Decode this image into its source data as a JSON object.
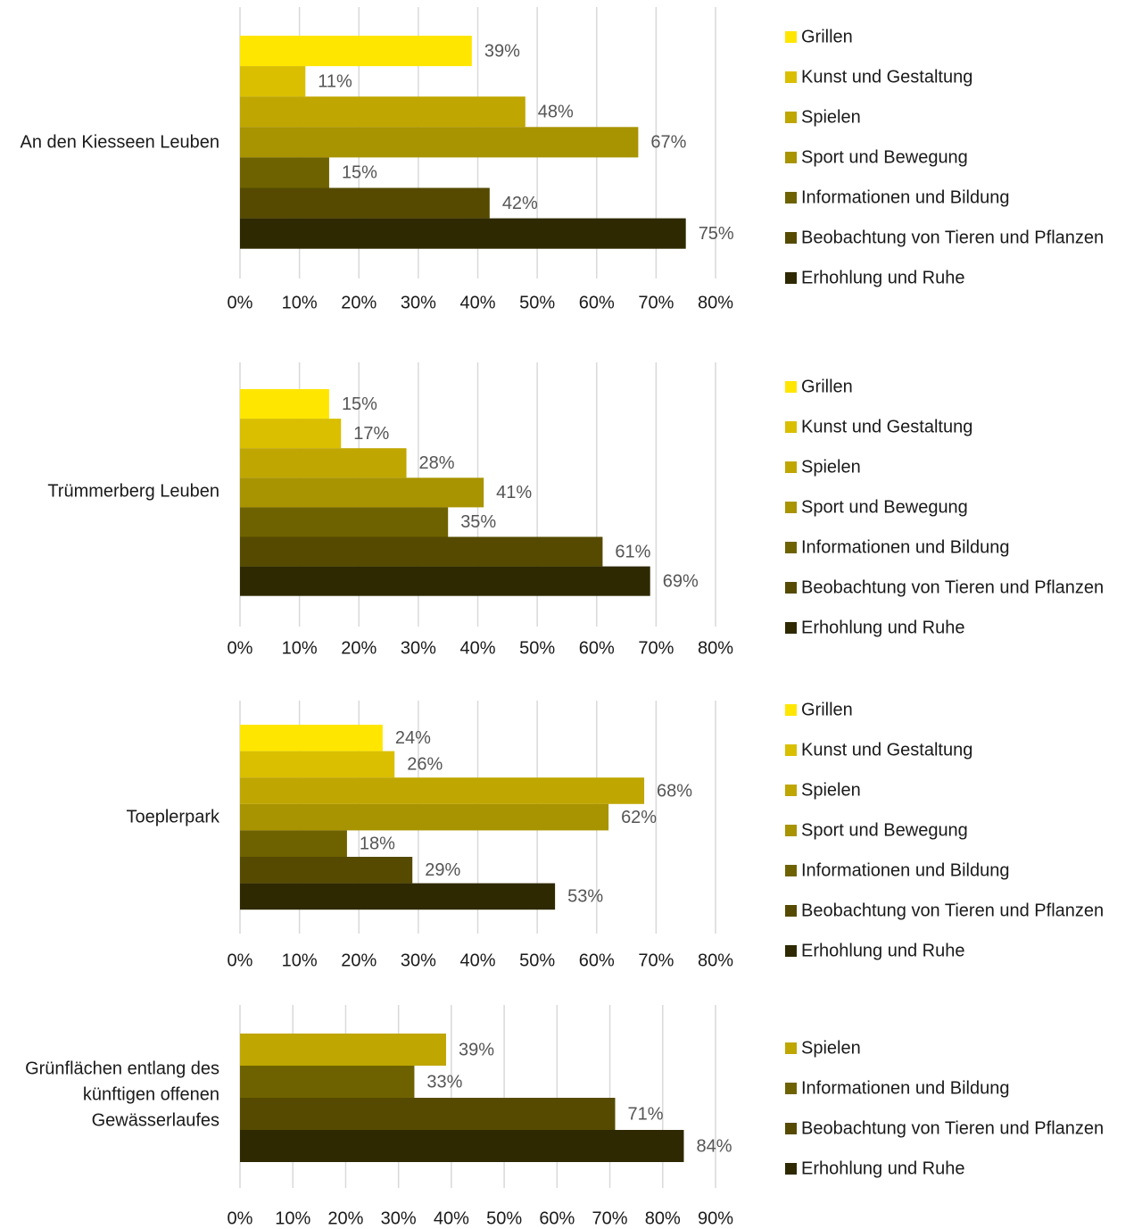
{
  "colors": {
    "Grillen": "#FFE600",
    "Kunst und Gestaltung": "#D9BF00",
    "Spielen": "#BFA600",
    "Sport und Bewegung": "#A89300",
    "Informationen und Bildung": "#6E6200",
    "Beobachtung von Tieren und Pflanzen": "#554A00",
    "Erhohlung und Ruhe": "#2E2900"
  },
  "chart_data": [
    {
      "type": "bar",
      "orientation": "horizontal",
      "category": "An den Kiesseen Leuben",
      "series": [
        {
          "name": "Grillen",
          "value": 39
        },
        {
          "name": "Kunst und Gestaltung",
          "value": 11
        },
        {
          "name": "Spielen",
          "value": 48
        },
        {
          "name": "Sport und Bewegung",
          "value": 67
        },
        {
          "name": "Informationen und Bildung",
          "value": 15
        },
        {
          "name": "Beobachtung von Tieren und Pflanzen",
          "value": 42
        },
        {
          "name": "Erhohlung und Ruhe",
          "value": 75
        }
      ],
      "value_labels": [
        "39%",
        "11%",
        "48%",
        "67%",
        "15%",
        "42%",
        "75%"
      ],
      "xlim": [
        0,
        80
      ],
      "ticks": [
        "0%",
        "10%",
        "20%",
        "30%",
        "40%",
        "50%",
        "60%",
        "70%",
        "80%"
      ],
      "grid": true,
      "legend": "right"
    },
    {
      "type": "bar",
      "orientation": "horizontal",
      "category": "Trümmerberg Leuben",
      "series": [
        {
          "name": "Grillen",
          "value": 15
        },
        {
          "name": "Kunst und Gestaltung",
          "value": 17
        },
        {
          "name": "Spielen",
          "value": 28
        },
        {
          "name": "Sport und Bewegung",
          "value": 41
        },
        {
          "name": "Informationen und Bildung",
          "value": 35
        },
        {
          "name": "Beobachtung von Tieren und Pflanzen",
          "value": 61
        },
        {
          "name": "Erhohlung und Ruhe",
          "value": 69
        }
      ],
      "value_labels": [
        "15%",
        "17%",
        "28%",
        "41%",
        "35%",
        "61%",
        "69%"
      ],
      "xlim": [
        0,
        80
      ],
      "ticks": [
        "0%",
        "10%",
        "20%",
        "30%",
        "40%",
        "50%",
        "60%",
        "70%",
        "80%"
      ],
      "grid": true,
      "legend": "right"
    },
    {
      "type": "bar",
      "orientation": "horizontal",
      "category": "Toeplerpark",
      "series": [
        {
          "name": "Grillen",
          "value": 24
        },
        {
          "name": "Kunst und Gestaltung",
          "value": 26
        },
        {
          "name": "Spielen",
          "value": 68
        },
        {
          "name": "Sport und Bewegung",
          "value": 62
        },
        {
          "name": "Informationen und Bildung",
          "value": 18
        },
        {
          "name": "Beobachtung von Tieren und Pflanzen",
          "value": 29
        },
        {
          "name": "Erhohlung und Ruhe",
          "value": 53
        }
      ],
      "value_labels": [
        "24%",
        "26%",
        "68%",
        "62%",
        "18%",
        "29%",
        "53%"
      ],
      "xlim": [
        0,
        80
      ],
      "ticks": [
        "0%",
        "10%",
        "20%",
        "30%",
        "40%",
        "50%",
        "60%",
        "70%",
        "80%"
      ],
      "grid": true,
      "legend": "right"
    },
    {
      "type": "bar",
      "orientation": "horizontal",
      "category": "Grünflächen entlang des künftigen offenen Gewässerlaufes",
      "category_lines": [
        "Grünflächen entlang des",
        "künftigen offenen",
        "Gewässerlaufes"
      ],
      "series": [
        {
          "name": "Spielen",
          "value": 39
        },
        {
          "name": "Informationen und Bildung",
          "value": 33
        },
        {
          "name": "Beobachtung von Tieren und Pflanzen",
          "value": 71
        },
        {
          "name": "Erhohlung und Ruhe",
          "value": 84
        }
      ],
      "value_labels": [
        "39%",
        "33%",
        "71%",
        "84%"
      ],
      "xlim": [
        0,
        90
      ],
      "ticks": [
        "0%",
        "10%",
        "20%",
        "30%",
        "40%",
        "50%",
        "60%",
        "70%",
        "80%",
        "90%"
      ],
      "grid": true,
      "legend": "right"
    }
  ]
}
